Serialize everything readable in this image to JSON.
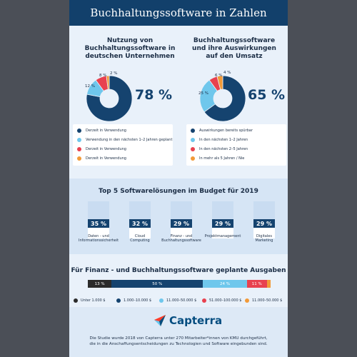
{
  "title": "Buchhaltungssoftware in Zahlen",
  "colors": {
    "dark_blue": "#15436f",
    "light_blue": "#6fc7ec",
    "red": "#e8414f",
    "orange": "#f29a38",
    "black": "#2b2b2b"
  },
  "chart_data": [
    {
      "type": "pie",
      "title": "Nutzung von\nBuchhaltungssoftware in\ndeutschen Unternehmen",
      "big_label": "78 %",
      "labels": [
        "Derzeit in Verwendung",
        "Verwendung in den nächsten 1–2 Jahren geplant",
        "Derzeit in Verwendung",
        "Derzeit in Verwendung"
      ],
      "values": [
        78,
        12,
        8,
        2
      ],
      "value_labels": [
        "",
        "12 %",
        "8 %",
        "2 %"
      ],
      "colors": [
        "#15436f",
        "#6fc7ec",
        "#e8414f",
        "#f29a38"
      ]
    },
    {
      "type": "pie",
      "title": "Buchhaltungssoftware\nund ihre Auswirkungen\nauf den Umsatz",
      "big_label": "65 %",
      "labels": [
        "Auswirkungen bereits spürbar",
        "In den nächsten 1–2 Jahren",
        "In den nächsten 2–5 Jahren",
        "In mehr als 5 Jahren / Nie"
      ],
      "values": [
        65,
        25,
        6,
        4
      ],
      "value_labels": [
        "",
        "25 %",
        "6 %",
        "4 %"
      ],
      "colors": [
        "#15436f",
        "#6fc7ec",
        "#e8414f",
        "#f29a38"
      ]
    },
    {
      "type": "bar",
      "title": "Top 5 Softwarelösungen im Budget für 2019",
      "categories": [
        "Daten - und\nInformationssicherheit",
        "Cloud\nComputing",
        "Finanz - und\nBuchhaltungssoftware",
        "Projektmanagement",
        "Digitales\nMarketing"
      ],
      "values": [
        35,
        32,
        29,
        29,
        29
      ],
      "value_labels": [
        "35 %",
        "32 %",
        "29 %",
        "29 %",
        "29 %"
      ],
      "ylim": [
        0,
        100
      ]
    },
    {
      "type": "bar",
      "title": "Für Finanz - und Buchhaltungssoftware geplante Ausgaben",
      "categories": [
        "Unter 1.000 $",
        "1.000–10.000 $",
        "11.000–50.000 $",
        "51.000–100.000 $",
        "11.000–50.000 $"
      ],
      "values": [
        13,
        50,
        24,
        11,
        2
      ],
      "value_labels": [
        "13 %",
        "50 %",
        "24 %",
        "11 %",
        ""
      ],
      "colors": [
        "#2b2b2b",
        "#15436f",
        "#6fc7ec",
        "#e8414f",
        "#f29a38"
      ]
    }
  ],
  "brand": {
    "name": "Capterra"
  },
  "footer": "Die Studie wurde 2018 von Capterra unter 270 Mitarbeiter*innen von KMU durchgeführt,\ndie in die Anschaffungsentscheidungen zu Technologien und Software eingebunden sind."
}
